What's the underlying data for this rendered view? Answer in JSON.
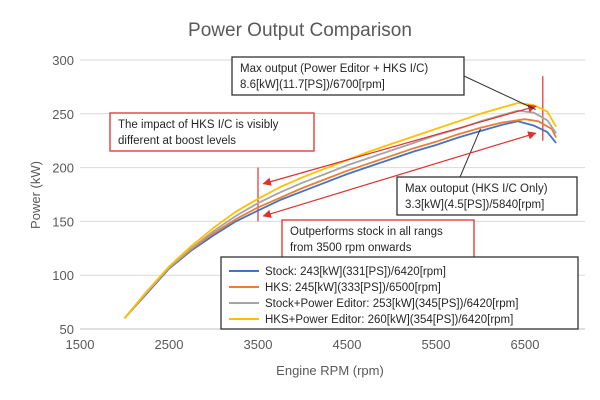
{
  "chart_data": {
    "type": "line",
    "title": "Power Output Comparison",
    "xlabel": "Engine RPM (rpm)",
    "ylabel": "Power (kW)",
    "xlim": [
      1500,
      7500
    ],
    "ylim": [
      50,
      300
    ],
    "x_ticks": [
      "1500",
      "2500",
      "3500",
      "4500",
      "5500",
      "6500"
    ],
    "x_tick_values": [
      1500,
      2500,
      3500,
      4500,
      5500,
      6500
    ],
    "y_ticks": [
      "50",
      "100",
      "150",
      "200",
      "250",
      "300"
    ],
    "y_tick_values": [
      50,
      100,
      150,
      200,
      250,
      300
    ],
    "grid": "horizontal",
    "legend_placement": "bottom-right",
    "series": [
      {
        "name": "Stock: 243[kW](331[PS])/6420[rpm]",
        "color": "#4472C4",
        "x": [
          2000,
          2250,
          2500,
          2750,
          3000,
          3250,
          3500,
          3750,
          4000,
          4250,
          4500,
          4750,
          5000,
          5250,
          5500,
          5750,
          6000,
          6250,
          6420,
          6600,
          6750,
          6850
        ],
        "y": [
          60,
          83,
          106,
          123,
          137,
          150,
          160,
          170,
          178,
          186,
          194,
          201,
          208,
          215,
          221,
          228,
          234,
          240,
          243,
          239,
          233,
          223
        ]
      },
      {
        "name": "HKS: 245[kW](333[PS])/6500[rpm]",
        "color": "#ED7D31",
        "x": [
          2000,
          2250,
          2500,
          2750,
          3000,
          3250,
          3500,
          3750,
          4000,
          4250,
          4500,
          4750,
          5000,
          5250,
          5500,
          5750,
          6000,
          6250,
          6500,
          6650,
          6800,
          6850
        ],
        "y": [
          60,
          84,
          107,
          124,
          139,
          152,
          163,
          172,
          181,
          189,
          197,
          204,
          211,
          218,
          224,
          231,
          237,
          242,
          245,
          243,
          236,
          228
        ]
      },
      {
        "name": "Stock+Power Editor: 253[kW](345[PS])/6420[rpm]",
        "color": "#A5A5A5",
        "x": [
          2000,
          2250,
          2500,
          2750,
          3000,
          3250,
          3500,
          3750,
          4000,
          4250,
          4500,
          4750,
          5000,
          5250,
          5500,
          5750,
          6000,
          6250,
          6420,
          6600,
          6750,
          6850
        ],
        "y": [
          60,
          84,
          107,
          125,
          141,
          155,
          167,
          177,
          186,
          194,
          202,
          209,
          216,
          223,
          230,
          236,
          243,
          249,
          253,
          251,
          244,
          232
        ]
      },
      {
        "name": "HKS+Power Editor: 260[kW](354[PS])/6420[rpm]",
        "color": "#FFC000",
        "x": [
          2000,
          2250,
          2500,
          2750,
          3000,
          3250,
          3500,
          3750,
          4000,
          4250,
          4500,
          4750,
          5000,
          5250,
          5500,
          5750,
          6000,
          6250,
          6420,
          6600,
          6750,
          6850
        ],
        "y": [
          60,
          85,
          108,
          127,
          144,
          159,
          171,
          182,
          191,
          199,
          207,
          215,
          222,
          229,
          236,
          243,
          250,
          256,
          260,
          258,
          252,
          238
        ]
      }
    ],
    "annotations": [
      {
        "id": "hks-ic-impact",
        "text_lines": [
          "The impact of HKS I/C is visibly",
          "different at boost levels"
        ],
        "border": "#E03030",
        "pointer": "double-arrow",
        "arrow_color": "#E03030",
        "arrow_from": [
          3560,
          185
        ],
        "arrow_to": [
          6620,
          257
        ]
      },
      {
        "id": "max-output-pe-hks",
        "text_lines": [
          "Max output (Power Editor + HKS I/C)",
          "8.6[kW](11.7[PS])/6700[rpm]"
        ],
        "border": "#333333",
        "pointer": "line",
        "pointer_to": [
          6620,
          254
        ]
      },
      {
        "id": "max-output-hks-only",
        "text_lines": [
          "Max outoput (HKS I/C Only)",
          "3.3[kW](4.5[PS])/5840[rpm]"
        ],
        "border": "#333333",
        "pointer": "line",
        "pointer_to": [
          6000,
          236
        ]
      },
      {
        "id": "outperforms-stock",
        "text_lines": [
          "Outperforms stock in all rangs",
          "from 3500 rpm onwards"
        ],
        "border": "#E03030",
        "pointer": "double-arrow",
        "arrow_color": "#E03030",
        "arrow_from": [
          3560,
          155
        ],
        "arrow_to": [
          6620,
          232
        ]
      }
    ],
    "reference_lines": [
      {
        "orientation": "vertical",
        "x": 3500,
        "y_from": 150,
        "y_to": 200,
        "color": "#E03030"
      },
      {
        "orientation": "vertical",
        "x": 6700,
        "y_from": 225,
        "y_to": 285,
        "color": "#E03030"
      }
    ]
  }
}
